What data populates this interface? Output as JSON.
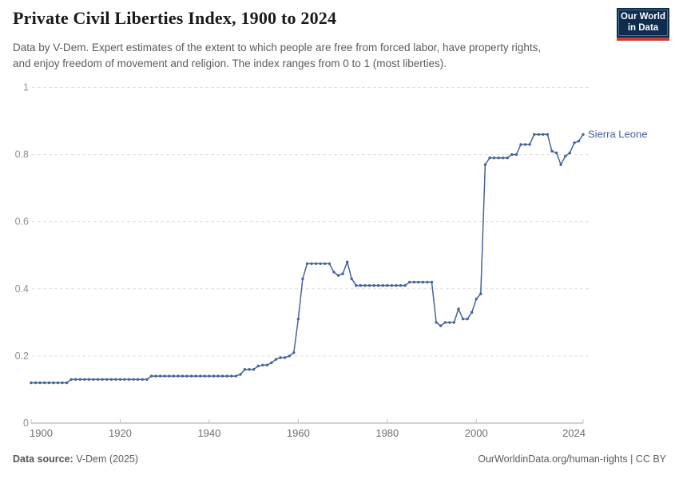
{
  "header": {
    "title": "Private Civil Liberties Index, 1900 to 2024",
    "subtitle": {
      "lines": [
        "Data by V-Dem. Expert estimates of the extent to which people are free from forced labor, have property rights,",
        "and enjoy freedom of movement and religion. The index ranges from 0 to 1 (most liberties)."
      ]
    },
    "logo": {
      "line1": "Our World",
      "line2": "in Data",
      "bg_color": "#0d2c4e",
      "stripe_color": "#cd3a31"
    }
  },
  "chart_data": {
    "type": "line",
    "title": "Private Civil Liberties Index, 1900 to 2024",
    "xlabel": "",
    "ylabel": "",
    "xlim": [
      1900,
      2024
    ],
    "ylim": [
      0,
      1
    ],
    "grid": "horizontal-dashed",
    "legend_position": "end-of-line-label",
    "xticks": [
      1900,
      1920,
      1940,
      1960,
      1980,
      2000,
      2024
    ],
    "yticks": [
      0,
      0.2,
      0.4,
      0.6,
      0.8,
      1
    ],
    "ytick_labels": [
      "0",
      "0.2",
      "0.4",
      "0.6",
      "0.8",
      "1"
    ],
    "year_start": 1900,
    "year_end": 2024,
    "series": [
      {
        "name": "Sierra Leone",
        "color": "#46639b",
        "values": [
          0.12,
          0.12,
          0.12,
          0.12,
          0.12,
          0.12,
          0.12,
          0.12,
          0.12,
          0.13,
          0.13,
          0.13,
          0.13,
          0.13,
          0.13,
          0.13,
          0.13,
          0.13,
          0.13,
          0.13,
          0.13,
          0.13,
          0.13,
          0.13,
          0.13,
          0.13,
          0.13,
          0.14,
          0.14,
          0.14,
          0.14,
          0.14,
          0.14,
          0.14,
          0.14,
          0.14,
          0.14,
          0.14,
          0.14,
          0.14,
          0.14,
          0.14,
          0.14,
          0.14,
          0.14,
          0.14,
          0.14,
          0.145,
          0.16,
          0.16,
          0.16,
          0.17,
          0.173,
          0.173,
          0.18,
          0.19,
          0.195,
          0.195,
          0.2,
          0.21,
          0.31,
          0.43,
          0.475,
          0.475,
          0.475,
          0.475,
          0.475,
          0.475,
          0.45,
          0.44,
          0.445,
          0.48,
          0.43,
          0.41,
          0.41,
          0.41,
          0.41,
          0.41,
          0.41,
          0.41,
          0.41,
          0.41,
          0.41,
          0.41,
          0.41,
          0.42,
          0.42,
          0.42,
          0.42,
          0.42,
          0.42,
          0.3,
          0.29,
          0.3,
          0.3,
          0.3,
          0.34,
          0.31,
          0.31,
          0.33,
          0.37,
          0.385,
          0.77,
          0.79,
          0.79,
          0.79,
          0.79,
          0.79,
          0.8,
          0.8,
          0.83,
          0.83,
          0.83,
          0.86,
          0.86,
          0.86,
          0.86,
          0.81,
          0.805,
          0.77,
          0.795,
          0.805,
          0.835,
          0.84,
          0.86
        ]
      }
    ]
  },
  "footer": {
    "source_label": "Data source:",
    "source_value": " V-Dem (2025)",
    "credit": "OurWorldinData.org/human-rights | CC BY"
  }
}
